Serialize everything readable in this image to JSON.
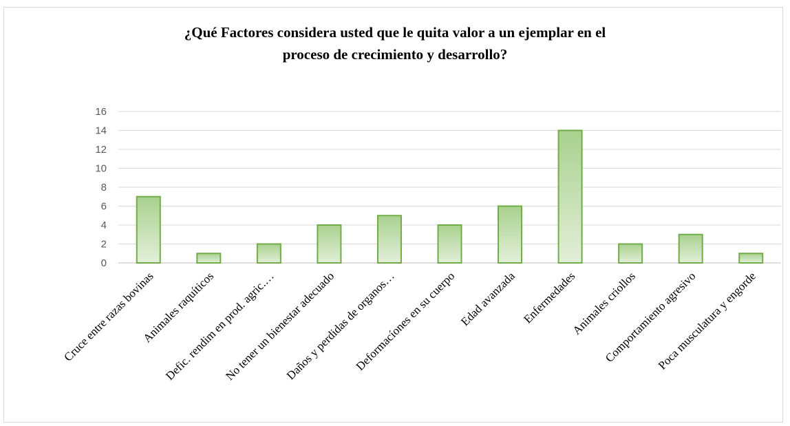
{
  "chart_data": {
    "type": "bar",
    "title_line1": "¿Qué Factores considera usted que le quita valor a un ejemplar en el",
    "title_line2": "proceso de crecimiento y desarrollo?",
    "categories": [
      "Cruce entre razas bovinas",
      "Animales raquíticos",
      "Defic. rendim en prod. agric.…",
      "No tener un bienestar adecuado",
      "Daños y perdidas de organos…",
      "Deformacíones en su cuerpo",
      "Edad avanzada",
      "Enfermedades",
      "Animales criollos",
      "Comportamiento agresivo",
      "Poca musculatura y engorde"
    ],
    "values": [
      7,
      1,
      2,
      4,
      5,
      4,
      6,
      14,
      2,
      3,
      1
    ],
    "ylim": [
      0,
      16
    ],
    "yticks": [
      "0",
      "2",
      "4",
      "6",
      "8",
      "10",
      "12",
      "14",
      "16"
    ],
    "grid": true,
    "legend": "none",
    "bar_fill_top": "#a9d18e",
    "bar_fill_bottom": "#e2efd9",
    "bar_stroke": "#70ad47",
    "grid_color": "#d9d9d9"
  }
}
